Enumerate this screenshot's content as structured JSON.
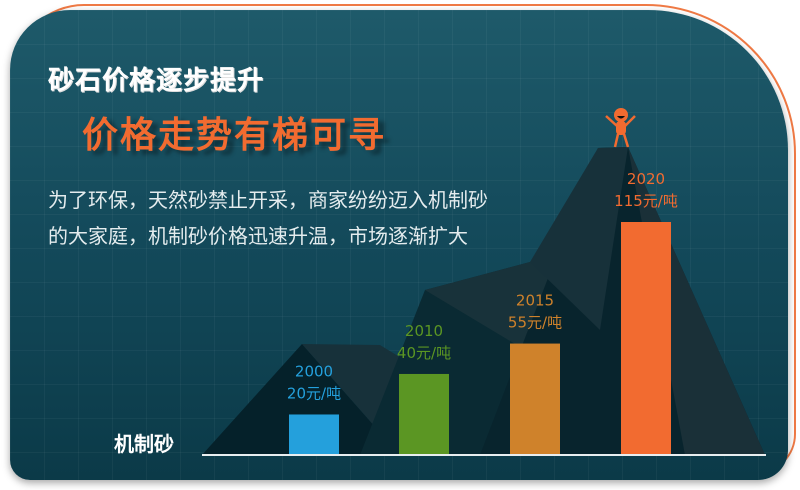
{
  "title": "砂石价格逐步提升",
  "subtitle": "价格走势有梯可寻",
  "description": "为了环保，天然砂禁止开采，商家纷纷迈入机制砂的大家庭，机制砂价格迅速升温，市场逐渐扩大",
  "colors": {
    "accent": "#f26b30",
    "background": "#13495a"
  },
  "icons": {
    "mascot": "person-cheering-icon"
  },
  "chart_data": {
    "type": "bar",
    "xlabel": "机制砂",
    "categories": [
      "2000",
      "2010",
      "2015",
      "2020"
    ],
    "values": [
      20,
      40,
      55,
      115
    ],
    "unit_labels": [
      "20元/吨",
      "40元/吨",
      "55元/吨",
      "115元/吨"
    ],
    "colors": [
      "#24a0dc",
      "#5b9623",
      "#cf822b",
      "#f26b30"
    ],
    "ylim": [
      0,
      115
    ],
    "grid": false,
    "legend": "none"
  }
}
